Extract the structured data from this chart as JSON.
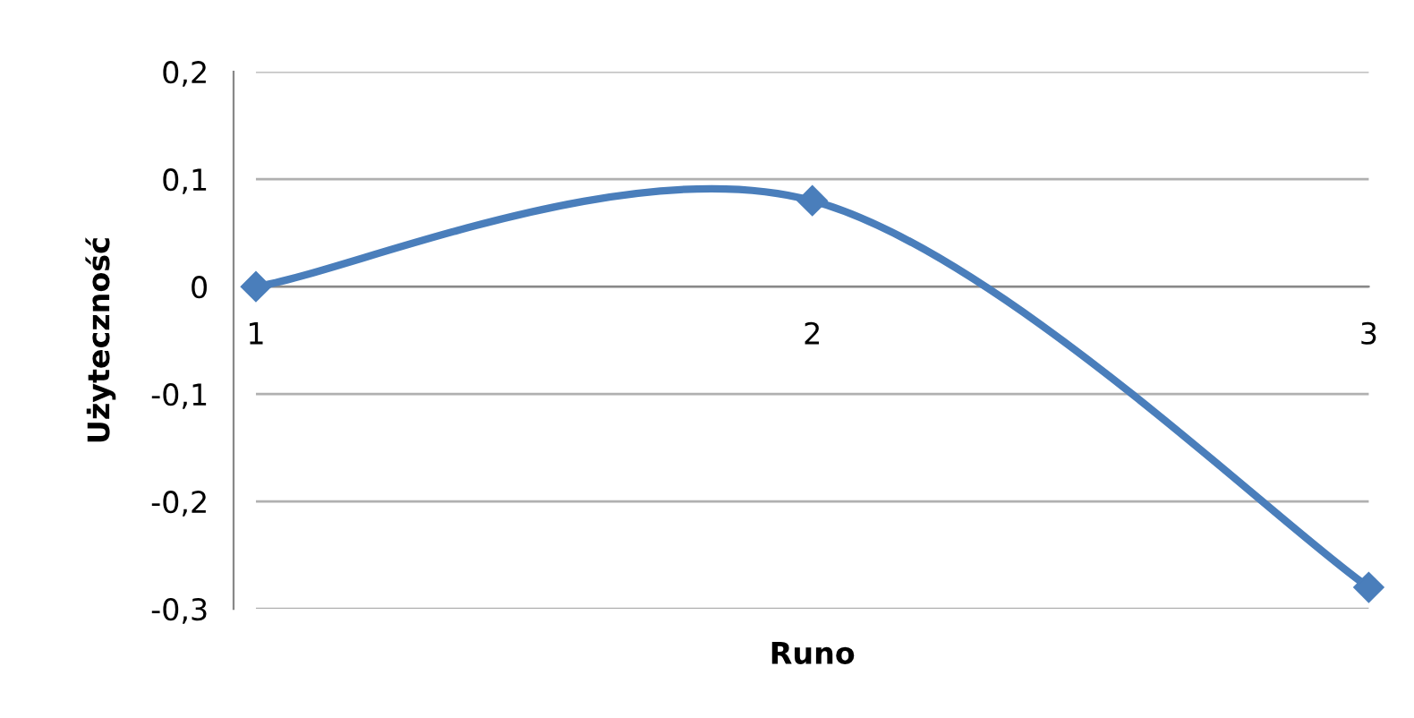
{
  "chart_data": {
    "type": "line",
    "xlabel": "Runo",
    "ylabel": "Użyteczność",
    "x": [
      1,
      2,
      3
    ],
    "series": [
      {
        "color": "#4a7ebb",
        "values": [
          0,
          0.08,
          -0.28
        ]
      }
    ],
    "xlim": [
      1,
      3
    ],
    "xticks": [
      1,
      2,
      3
    ],
    "ylim": [
      -0.3,
      0.2
    ],
    "yticks": [
      {
        "value": -0.3,
        "label": "-0,3"
      },
      {
        "value": -0.2,
        "label": "-0,2"
      },
      {
        "value": -0.1,
        "label": "-0,1"
      },
      0,
      {
        "value": 0.1,
        "label": "0,1"
      },
      {
        "value": 0.2,
        "label": "0,2"
      }
    ],
    "grid": "y",
    "marker": "diamond"
  }
}
